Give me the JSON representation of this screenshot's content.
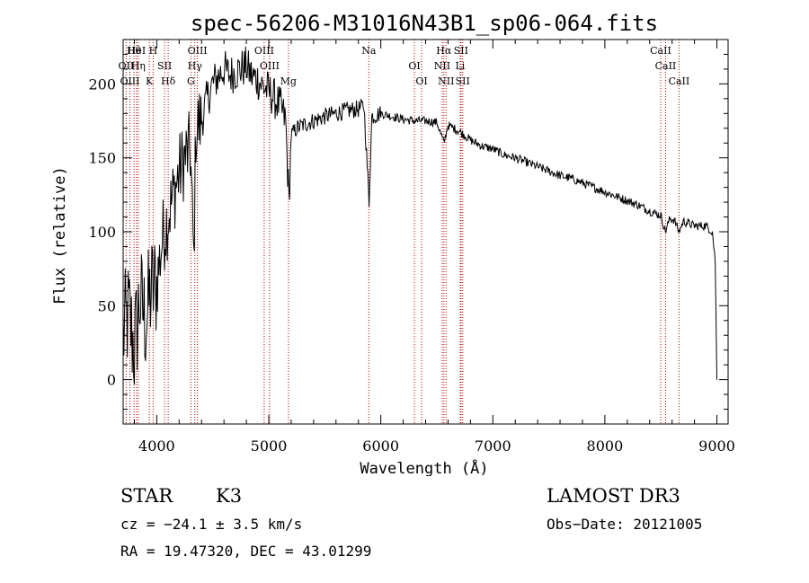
{
  "chart_data": {
    "type": "line",
    "title": "spec-56206-M31016N43B1_sp06-064.fits",
    "xlabel": "Wavelength (Å)",
    "ylabel": "Flux (relative)",
    "xlim": [
      3700,
      9100
    ],
    "ylim": [
      -30,
      230
    ],
    "xticks": [
      4000,
      5000,
      6000,
      7000,
      8000,
      9000
    ],
    "yticks": [
      0,
      50,
      100,
      150,
      200
    ],
    "grid": false,
    "series": [
      {
        "name": "flux",
        "x": [
          3700,
          3750,
          3800,
          3850,
          3900,
          3950,
          4000,
          4050,
          4100,
          4150,
          4200,
          4250,
          4300,
          4330,
          4350,
          4400,
          4450,
          4500,
          4550,
          4600,
          4650,
          4700,
          4750,
          4800,
          4850,
          4900,
          4950,
          5000,
          5050,
          5100,
          5150,
          5180,
          5200,
          5250,
          5300,
          5400,
          5500,
          5600,
          5700,
          5800,
          5850,
          5895,
          5920,
          6000,
          6100,
          6200,
          6300,
          6400,
          6500,
          6563,
          6600,
          6700,
          6800,
          6900,
          7000,
          7100,
          7200,
          7300,
          7400,
          7500,
          7600,
          7700,
          7800,
          7900,
          8000,
          8100,
          8200,
          8300,
          8400,
          8500,
          8540,
          8580,
          8620,
          8662,
          8700,
          8800,
          8900,
          8960,
          8985,
          9000
        ],
        "y": [
          30,
          45,
          20,
          55,
          40,
          60,
          65,
          95,
          110,
          125,
          140,
          150,
          155,
          80,
          170,
          175,
          190,
          200,
          205,
          210,
          206,
          208,
          210,
          212,
          205,
          203,
          198,
          195,
          190,
          185,
          175,
          120,
          165,
          170,
          172,
          175,
          178,
          180,
          182,
          183,
          185,
          120,
          178,
          180,
          178,
          176,
          175,
          175,
          174,
          160,
          172,
          168,
          162,
          158,
          156,
          152,
          150,
          147,
          144,
          141,
          138,
          136,
          133,
          130,
          127,
          124,
          121,
          118,
          114,
          111,
          100,
          109,
          108,
          100,
          107,
          104,
          104,
          100,
          80,
          0
        ]
      }
    ],
    "lines": [
      {
        "label": "Hθ",
        "wl": 3797
      },
      {
        "label": "OII",
        "wl": 3727
      },
      {
        "label": "OIII",
        "wl": 3760
      },
      {
        "label": "HeI",
        "wl": 3820
      },
      {
        "label": "Hη",
        "wl": 3835
      },
      {
        "label": "K",
        "wl": 3934
      },
      {
        "label": "H",
        "wl": 3968
      },
      {
        "label": "SII",
        "wl": 4070
      },
      {
        "label": "Hδ",
        "wl": 4102
      },
      {
        "label": "OIII",
        "wl": 4363
      },
      {
        "label": "Hγ",
        "wl": 4340
      },
      {
        "label": "G",
        "wl": 4305
      },
      {
        "label": "OIII",
        "wl": 4959
      },
      {
        "label": "OIII",
        "wl": 5007
      },
      {
        "label": "Mg",
        "wl": 5175
      },
      {
        "label": "Na",
        "wl": 5893
      },
      {
        "label": "OI",
        "wl": 6300
      },
      {
        "label": "OI",
        "wl": 6364
      },
      {
        "label": "Hα",
        "wl": 6563
      },
      {
        "label": "NII",
        "wl": 6548
      },
      {
        "label": "NII",
        "wl": 6583
      },
      {
        "label": "SII",
        "wl": 6716
      },
      {
        "label": "Li",
        "wl": 6708
      },
      {
        "label": "SII",
        "wl": 6731
      },
      {
        "label": "CaII",
        "wl": 8498
      },
      {
        "label": "CaII",
        "wl": 8542
      },
      {
        "label": "CaII",
        "wl": 8662
      }
    ]
  },
  "info": {
    "class": "STAR",
    "subclass": "K3",
    "cz": "cz = −24.1 ± 3.5 km/s",
    "coords": "RA =  19.47320, DEC =  43.01299",
    "survey": "LAMOST DR3",
    "obsdate": "Obs−Date: 20121005"
  },
  "colors": {
    "line_marker": "#b00000",
    "spectrum": "#000000"
  }
}
